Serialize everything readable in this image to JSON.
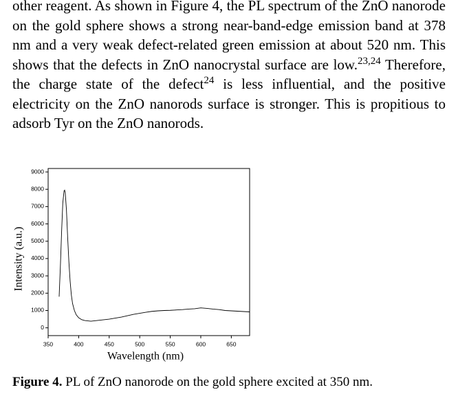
{
  "paragraph": [
    "other reagent. As shown in Figure 4, the PL spectrum of the ZnO nanorode on the gold sphere shows a strong near-band-edge emission band at 378 nm and a very weak defect-related green emission at about 520 nm. This shows that the defects in ZnO nanocrystal surface are low.",
    "23,24",
    " Therefore, the charge state of the defect",
    "24",
    " is less influential, and the positive electricity on the ZnO nanorods surface is stronger. This is propitious to adsorb Tyr on the ZnO nanorods."
  ],
  "chart_data": {
    "type": "line",
    "x_label": "Wavelength (nm)",
    "y_label": "Intensity (a.u.)",
    "x": [
      368,
      370,
      372,
      374,
      376,
      377,
      378,
      380,
      382,
      384,
      386,
      388,
      390,
      393,
      396,
      400,
      405,
      410,
      415,
      420,
      430,
      440,
      450,
      460,
      470,
      480,
      490,
      500,
      510,
      520,
      530,
      540,
      550,
      560,
      570,
      580,
      590,
      600,
      610,
      620,
      630,
      640,
      650,
      660,
      670,
      680
    ],
    "values": [
      1800,
      3500,
      5500,
      7200,
      7900,
      7950,
      7800,
      6800,
      5200,
      3800,
      2700,
      1900,
      1400,
      1000,
      750,
      580,
      470,
      420,
      400,
      380,
      420,
      460,
      500,
      560,
      620,
      700,
      780,
      840,
      900,
      950,
      980,
      1000,
      1010,
      1030,
      1050,
      1080,
      1100,
      1150,
      1120,
      1080,
      1050,
      1000,
      980,
      960,
      940,
      920
    ],
    "color": "#000000",
    "xlim": [
      350,
      680
    ],
    "xticks": [
      350,
      400,
      450,
      500,
      550,
      600,
      650
    ],
    "ylim": [
      -450,
      9200
    ],
    "yticks": [
      0,
      1000,
      2000,
      3000,
      4000,
      5000,
      6000,
      7000,
      8000,
      9000
    ]
  },
  "caption": {
    "label": "Figure 4.",
    "text": " PL of ZnO nanorode on the gold sphere excited at 350 nm."
  }
}
